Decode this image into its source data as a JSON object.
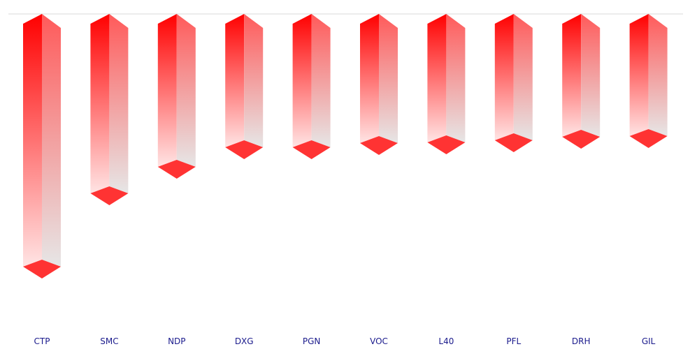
{
  "chart_data": {
    "type": "bar",
    "orientation": "vertical-3d",
    "categories": [
      "CTP",
      "SMC",
      "NDP",
      "DXG",
      "PGN",
      "VOC",
      "L40",
      "PFL",
      "DRH",
      "GIL"
    ],
    "values": [
      -362,
      -257,
      -219,
      -191,
      -191,
      -185,
      -184,
      -181,
      -176,
      -175
    ],
    "ylim": [
      -440,
      0
    ],
    "grid": false,
    "title": "",
    "xlabel": "",
    "ylabel": "",
    "colors": {
      "bar_front_top": "#ff0000",
      "bar_front_bottom": "#ffe4e4",
      "bar_side_top": "#ff5a5a",
      "bar_side_bottom": "#e6e6e6",
      "bar_cap": "#ff3333",
      "baseline": "#d9d9d9",
      "label": "#1a1a8c"
    }
  }
}
